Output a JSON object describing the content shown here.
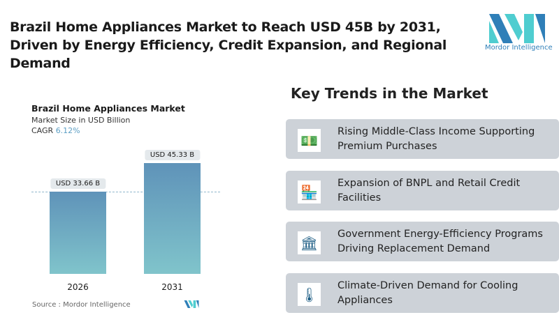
{
  "header": {
    "title": "Brazil Home Appliances Market to Reach USD 45B by 2031, Driven by Energy Efficiency, Credit Expansion, and Regional Demand",
    "logo_text": "Mordor Intelligence"
  },
  "chart_data": {
    "type": "bar",
    "title": "Brazil Home Appliances Market",
    "subtitle": "Market Size in USD Billion",
    "cagr_label": "CAGR",
    "cagr_value": "6.12%",
    "categories": [
      "2026",
      "2031"
    ],
    "values": [
      33.66,
      45.33
    ],
    "data_labels": [
      "USD 33.66 B",
      "USD 45.33 B"
    ],
    "bar_color_top": "#5f93b9",
    "bar_color_bottom": "#80c4cb",
    "source": "Source :  Mordor Intelligence"
  },
  "trends": {
    "heading": "Key Trends in the Market",
    "items": [
      {
        "icon": "money-icon",
        "glyph": "💵",
        "text": "Rising Middle-Class Income Supporting Premium Purchases"
      },
      {
        "icon": "store-icon",
        "glyph": "🏪",
        "text": "Expansion of BNPL and Retail Credit Facilities"
      },
      {
        "icon": "government-building-icon",
        "glyph": "🏛",
        "text": "Government Energy-Efficiency Programs Driving Replacement Demand"
      },
      {
        "icon": "thermometer-icon",
        "glyph": "🌡",
        "text": "Climate-Driven Demand for Cooling Appliances"
      }
    ]
  }
}
